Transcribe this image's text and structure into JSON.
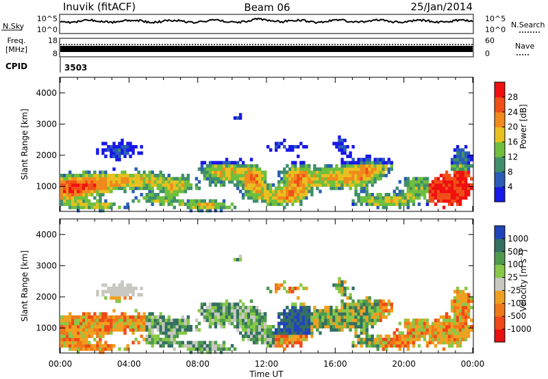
{
  "header": {
    "station": "Inuvik (fitACF)",
    "beam": "Beam 06",
    "date": "25/Jan/2014"
  },
  "noise_panel": {
    "left_label": "N.Sky",
    "right_label": "N.Search",
    "left_ticks": [
      "10^5",
      "10^0"
    ],
    "right_ticks": [
      "10^5",
      "10^0"
    ]
  },
  "freq_panel": {
    "left_label_1": "Freq.",
    "left_label_2": "[MHz]",
    "right_label": "Nave",
    "left_ticks": [
      "18",
      "8"
    ],
    "right_ticks": [
      "60",
      "0"
    ]
  },
  "cpid": {
    "label": "CPID",
    "value": "3503"
  },
  "chart_data": [
    {
      "type": "heatmap",
      "parameter": "power",
      "ylabel": "Slant Range [km]",
      "yticks": [
        1000,
        2000,
        3000,
        4000
      ],
      "ylim": [
        200,
        4500
      ],
      "xlabel": "Time UT",
      "xticks": [
        "00:00",
        "04:00",
        "08:00",
        "12:00",
        "16:00",
        "20:00",
        "00:00"
      ],
      "xlim_hours": [
        0,
        24
      ],
      "colorbar": {
        "label": "Power [dB]",
        "ticks": [
          "4",
          "8",
          "12",
          "16",
          "20",
          "24",
          "28"
        ],
        "colors": [
          "#1818e8",
          "#2a5cb8",
          "#3f8f6a",
          "#6fbf3f",
          "#e8c020",
          "#f08a1c",
          "#f05018",
          "#f01010"
        ]
      }
    },
    {
      "type": "heatmap",
      "parameter": "velocity",
      "ylabel": "Slant Range [km]",
      "yticks": [
        1000,
        2000,
        3000,
        4000
      ],
      "ylim": [
        200,
        4500
      ],
      "xlabel": "Time UT",
      "xticks": [
        "00:00",
        "04:00",
        "08:00",
        "12:00",
        "16:00",
        "20:00",
        "00:00"
      ],
      "xlim_hours": [
        0,
        24
      ],
      "colorbar": {
        "label": "Velocity [m s",
        "label_sup": "-1",
        "label_end": "]",
        "ticks": [
          "1000",
          "500",
          "100",
          "25",
          "-25",
          "-100",
          "-500",
          "-1000"
        ],
        "colors": [
          "#2244bb",
          "#336f62",
          "#4e9a4e",
          "#88c848",
          "#c8c8c0",
          "#f0a020",
          "#f07818",
          "#f04818",
          "#e81010"
        ]
      }
    }
  ],
  "xlabel": "Time UT"
}
